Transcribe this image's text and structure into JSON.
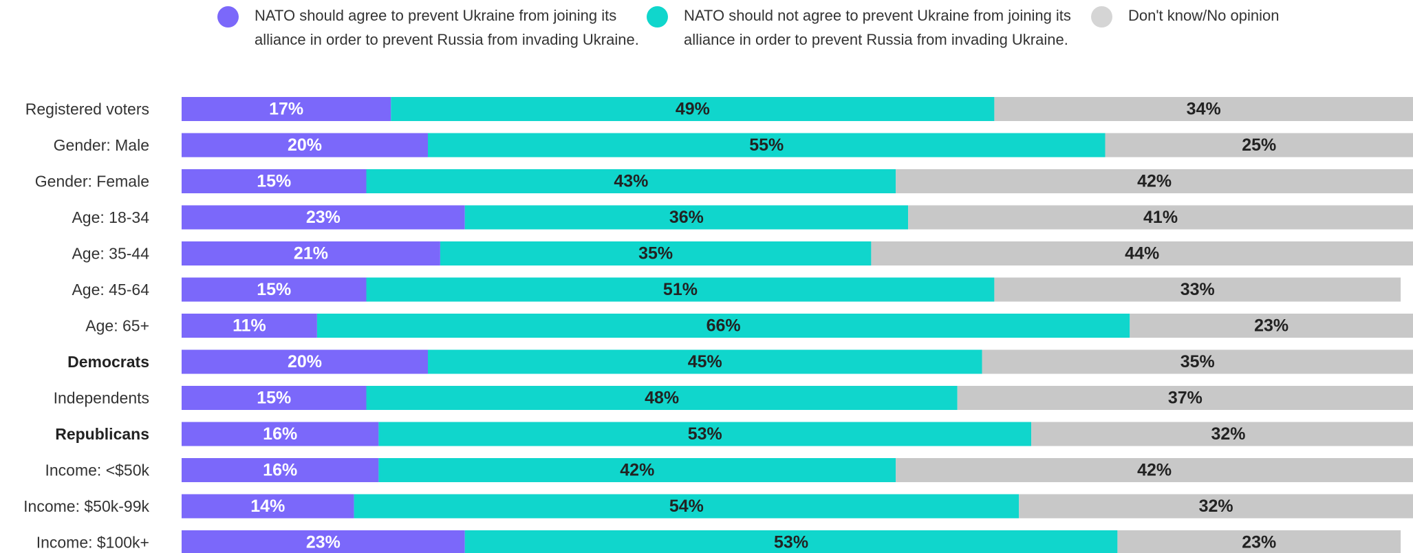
{
  "legend": [
    {
      "label": "NATO should agree to prevent Ukraine from joining its alliance in order to prevent Russia from invading Ukraine.",
      "color": "#7B68FA"
    },
    {
      "label": "NATO should not agree to prevent Ukraine from joining its alliance in order to prevent Russia from invading Ukraine.",
      "color": "#10D6CC"
    },
    {
      "label": "Don't know/No opinion",
      "color": "#D5D5D5"
    }
  ],
  "chart_data": {
    "type": "bar",
    "orientation": "horizontal",
    "stacked": true,
    "categories": [
      "Registered voters",
      "Gender: Male",
      "Gender: Female",
      "Age: 18-34",
      "Age: 35-44",
      "Age: 45-64",
      "Age: 65+",
      "Democrats",
      "Independents",
      "Republicans",
      "Income: <$50k",
      "Income: $50k-99k",
      "Income: $100k+"
    ],
    "bold_categories": [
      "Democrats",
      "Republicans"
    ],
    "series": [
      {
        "name": "NATO should agree to prevent Ukraine from joining its alliance in order to prevent Russia from invading Ukraine.",
        "color": "#7B68FA",
        "label_color": "#FFFFFF",
        "values": [
          17,
          20,
          15,
          23,
          21,
          15,
          11,
          20,
          15,
          16,
          16,
          14,
          23
        ]
      },
      {
        "name": "NATO should not agree to prevent Ukraine from joining its alliance in order to prevent Russia from invading Ukraine.",
        "color": "#10D6CC",
        "label_color": "#222222",
        "values": [
          49,
          55,
          43,
          36,
          35,
          51,
          66,
          45,
          48,
          53,
          42,
          54,
          53
        ]
      },
      {
        "name": "Don't know/No opinion",
        "color": "#C8C8C8",
        "label_color": "#222222",
        "values": [
          34,
          25,
          42,
          41,
          44,
          33,
          23,
          35,
          37,
          32,
          42,
          32,
          23
        ]
      }
    ],
    "value_suffix": "%",
    "xlim": [
      0,
      100
    ],
    "grid": false,
    "legend_position": "top"
  }
}
